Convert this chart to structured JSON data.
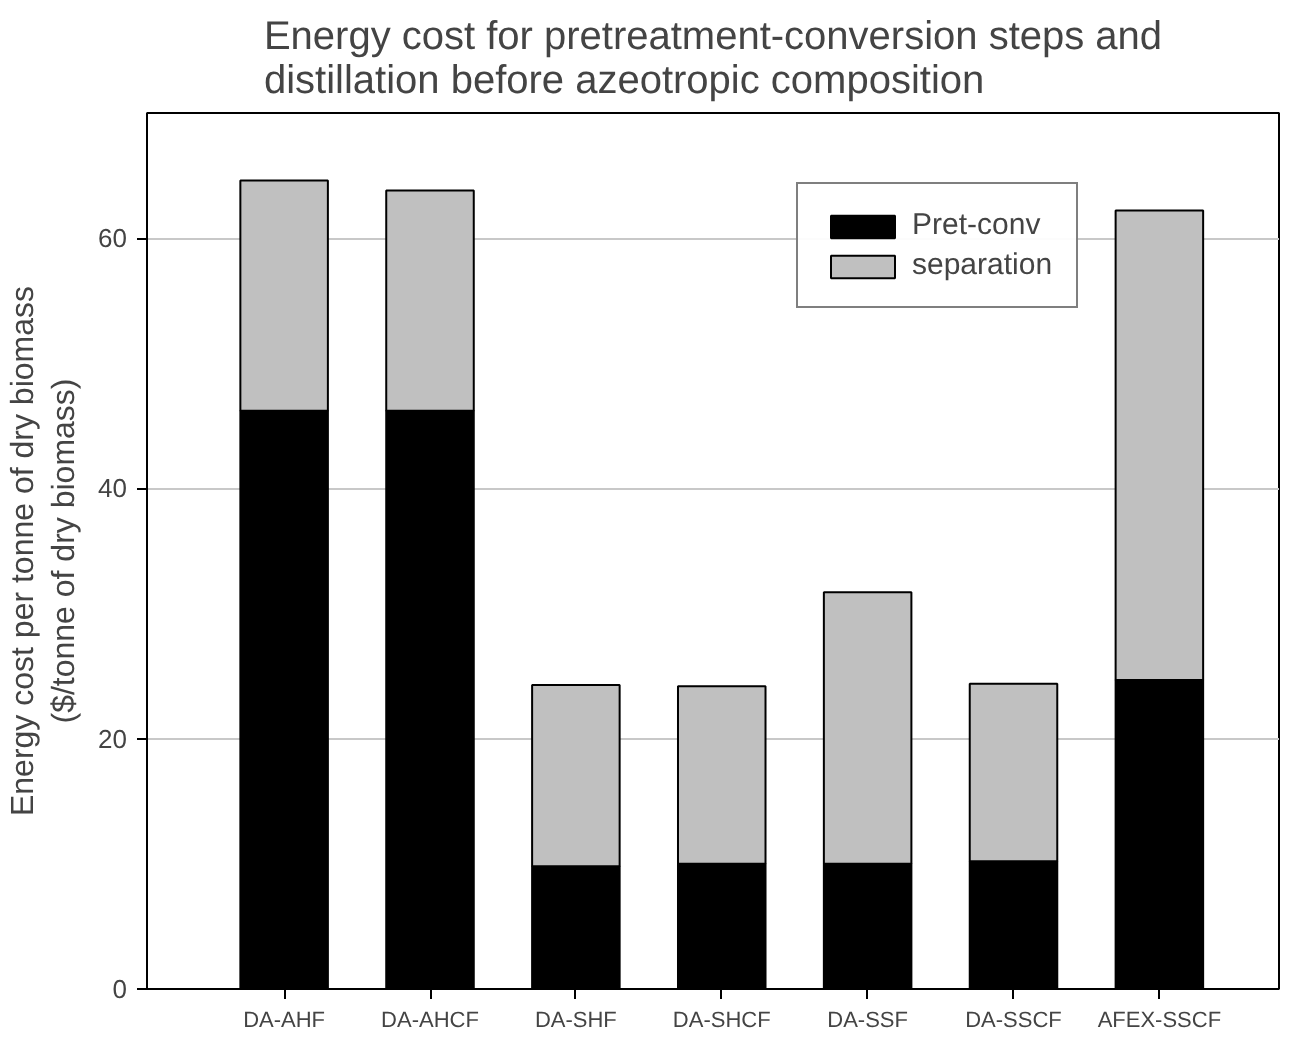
{
  "chart_data": {
    "type": "bar",
    "stacked": true,
    "title": "Energy cost for pretreatment-conversion steps and\ndistillation before azeotropic composition",
    "ylabel": "Energy cost per tonne of dry biomass\n($/tonne of dry biomass)",
    "categories": [
      "DA-AHF",
      "DA-AHCF",
      "DA-SHF",
      "DA-SHCF",
      "DA-SSF",
      "DA-SSCF",
      "AFEX-SSCF"
    ],
    "series": [
      {
        "name": "Pret-conv",
        "color": "#000000",
        "values": [
          46.2,
          46.2,
          9.8,
          10.0,
          10.0,
          10.2,
          24.7
        ]
      },
      {
        "name": "separation",
        "color": "#c0c0c0",
        "values": [
          18.4,
          17.6,
          14.5,
          14.2,
          21.7,
          14.2,
          37.5
        ]
      }
    ],
    "ylim": [
      0,
      70
    ],
    "yticks": [
      0,
      20,
      40,
      60
    ],
    "grid": "y",
    "legend": "top right"
  }
}
